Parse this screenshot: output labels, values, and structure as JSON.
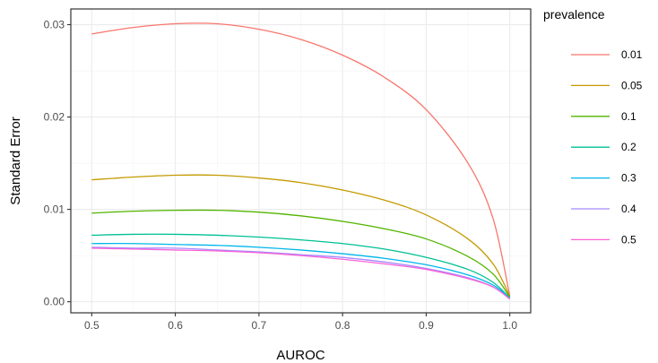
{
  "chart_data": {
    "type": "line",
    "title": "",
    "xlabel": "AUROC",
    "ylabel": "Standard Error",
    "xlim": [
      0.475,
      1.025
    ],
    "ylim": [
      -0.0012,
      0.0317
    ],
    "x_ticks": [
      "0.5",
      "0.6",
      "0.7",
      "0.8",
      "0.9",
      "1.0"
    ],
    "y_ticks": [
      "0.00",
      "0.01",
      "0.02",
      "0.03"
    ],
    "x_tick_values": [
      0.5,
      0.6,
      0.7,
      0.8,
      0.9,
      1.0
    ],
    "y_tick_values": [
      0.0,
      0.01,
      0.02,
      0.03
    ],
    "grid": true,
    "legend": {
      "title": "prevalence",
      "position": "right"
    },
    "x": [
      0.5,
      0.55,
      0.6,
      0.65,
      0.7,
      0.75,
      0.8,
      0.85,
      0.9,
      0.95,
      0.98,
      1.0
    ],
    "series": [
      {
        "name": "0.01",
        "color": "#F8766D",
        "values": [
          0.029,
          0.0297,
          0.0301,
          0.0301,
          0.0295,
          0.0284,
          0.0267,
          0.0243,
          0.0208,
          0.015,
          0.009,
          0.0006
        ]
      },
      {
        "name": "0.05",
        "color": "#C49A00",
        "values": [
          0.0132,
          0.0135,
          0.0137,
          0.0137,
          0.0134,
          0.0129,
          0.0121,
          0.011,
          0.0094,
          0.0068,
          0.0041,
          0.0006
        ]
      },
      {
        "name": "0.1",
        "color": "#53B400",
        "values": [
          0.0096,
          0.0098,
          0.0099,
          0.0099,
          0.0097,
          0.0093,
          0.0087,
          0.0079,
          0.0068,
          0.0049,
          0.003,
          0.0005
        ]
      },
      {
        "name": "0.2",
        "color": "#00C094",
        "values": [
          0.0072,
          0.0073,
          0.0073,
          0.0072,
          0.007,
          0.0067,
          0.0063,
          0.0057,
          0.0048,
          0.0035,
          0.0021,
          0.0004
        ]
      },
      {
        "name": "0.3",
        "color": "#00B6EB",
        "values": [
          0.0063,
          0.0063,
          0.0062,
          0.0061,
          0.0059,
          0.0056,
          0.0052,
          0.0047,
          0.004,
          0.0029,
          0.0018,
          0.0004
        ]
      },
      {
        "name": "0.4",
        "color": "#A58AFF",
        "values": [
          0.0059,
          0.0058,
          0.0058,
          0.0056,
          0.0054,
          0.0051,
          0.0048,
          0.0043,
          0.0036,
          0.0026,
          0.0016,
          0.0003
        ]
      },
      {
        "name": "0.5",
        "color": "#FB61D7",
        "values": [
          0.0058,
          0.0057,
          0.0056,
          0.0055,
          0.0053,
          0.005,
          0.0046,
          0.0041,
          0.0035,
          0.0025,
          0.0016,
          0.0003
        ]
      }
    ]
  }
}
